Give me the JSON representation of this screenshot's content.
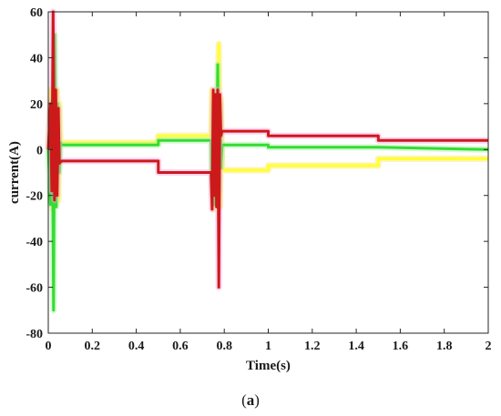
{
  "chart_data": {
    "type": "line",
    "xlabel": "Time(s)",
    "ylabel": "current(A)",
    "xlim": [
      0,
      2
    ],
    "ylim": [
      -80,
      60
    ],
    "xticks": [
      0,
      0.2,
      0.4,
      0.6,
      0.8,
      1,
      1.2,
      1.4,
      1.6,
      1.8,
      2
    ],
    "xtick_labels": [
      "0",
      "0.2",
      "0.4",
      "0.6",
      "0.8",
      "1",
      "1.2",
      "1.4",
      "1.6",
      "1.8",
      "2"
    ],
    "yticks": [
      -80,
      -60,
      -40,
      -20,
      0,
      20,
      40,
      60
    ],
    "ytick_labels": [
      "-80",
      "-60",
      "-40",
      "-20",
      "0",
      "20",
      "40",
      "60"
    ],
    "grid": false,
    "legend": "none",
    "series": [
      {
        "color": "#ffff33",
        "points": [
          [
            0,
            0
          ],
          [
            0.012,
            26
          ],
          [
            0.02,
            -26
          ],
          [
            0.028,
            24
          ],
          [
            0.034,
            -24
          ],
          [
            0.04,
            26
          ],
          [
            0.046,
            -22
          ],
          [
            0.05,
            20
          ],
          [
            0.055,
            3
          ],
          [
            0.06,
            3
          ],
          [
            0.5,
            3
          ],
          [
            0.5,
            6
          ],
          [
            0.74,
            6
          ],
          [
            0.745,
            26
          ],
          [
            0.75,
            -26
          ],
          [
            0.755,
            24
          ],
          [
            0.76,
            -24
          ],
          [
            0.765,
            26
          ],
          [
            0.77,
            -22
          ],
          [
            0.775,
            46
          ],
          [
            0.78,
            -25
          ],
          [
            0.785,
            22
          ],
          [
            0.79,
            -8
          ],
          [
            0.8,
            -9
          ],
          [
            1.0,
            -9
          ],
          [
            1.0,
            -7
          ],
          [
            1.5,
            -7
          ],
          [
            1.5,
            -4
          ],
          [
            2.0,
            -4
          ]
        ]
      },
      {
        "color": "#33dd33",
        "points": [
          [
            0,
            0
          ],
          [
            0.01,
            -24
          ],
          [
            0.018,
            22
          ],
          [
            0.024,
            -70
          ],
          [
            0.03,
            50
          ],
          [
            0.036,
            -25
          ],
          [
            0.042,
            20
          ],
          [
            0.05,
            -10
          ],
          [
            0.055,
            3
          ],
          [
            0.06,
            2
          ],
          [
            0.5,
            2
          ],
          [
            0.5,
            4
          ],
          [
            0.74,
            4
          ],
          [
            0.745,
            -20
          ],
          [
            0.75,
            20
          ],
          [
            0.755,
            -24
          ],
          [
            0.76,
            24
          ],
          [
            0.765,
            -20
          ],
          [
            0.77,
            37
          ],
          [
            0.775,
            -18
          ],
          [
            0.78,
            20
          ],
          [
            0.785,
            -8
          ],
          [
            0.79,
            2
          ],
          [
            0.8,
            2
          ],
          [
            1.0,
            2
          ],
          [
            1.0,
            1
          ],
          [
            1.5,
            1
          ],
          [
            1.5,
            1
          ],
          [
            2.0,
            0
          ]
        ]
      },
      {
        "color": "#cc1a1a",
        "points": [
          [
            0,
            0
          ],
          [
            0.01,
            20
          ],
          [
            0.016,
            -18
          ],
          [
            0.022,
            60
          ],
          [
            0.028,
            -22
          ],
          [
            0.034,
            26
          ],
          [
            0.04,
            -20
          ],
          [
            0.046,
            18
          ],
          [
            0.05,
            -6
          ],
          [
            0.06,
            -5
          ],
          [
            0.5,
            -5
          ],
          [
            0.5,
            -10
          ],
          [
            0.74,
            -10
          ],
          [
            0.745,
            -26
          ],
          [
            0.75,
            26
          ],
          [
            0.755,
            -20
          ],
          [
            0.76,
            24
          ],
          [
            0.765,
            -25
          ],
          [
            0.77,
            26
          ],
          [
            0.775,
            -60
          ],
          [
            0.78,
            24
          ],
          [
            0.785,
            6
          ],
          [
            0.79,
            8
          ],
          [
            0.8,
            8
          ],
          [
            1.0,
            8
          ],
          [
            1.0,
            6
          ],
          [
            1.5,
            6
          ],
          [
            1.5,
            4
          ],
          [
            2.0,
            4
          ]
        ]
      }
    ]
  },
  "caption": {
    "open": "(",
    "letter": "a",
    "close": ")"
  }
}
